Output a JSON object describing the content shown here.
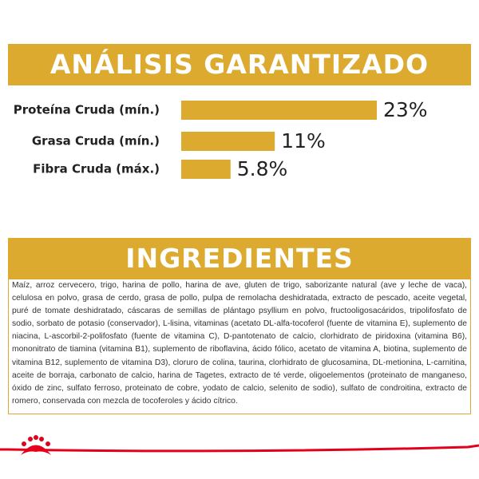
{
  "chart_data": {
    "type": "bar",
    "orientation": "horizontal",
    "title": "ANÁLISIS GARANTIZADO",
    "categories": [
      "Proteína Cruda (mín.)",
      "Grasa Cruda (mín.)",
      "Fibra Cruda (máx.)"
    ],
    "values": [
      23,
      11,
      5.8
    ],
    "value_labels": [
      "23%",
      "11%",
      "5.8%"
    ],
    "color": "#dcaa2e"
  },
  "ingredients": {
    "title": "INGREDIENTES",
    "text": "Maíz, arroz cervecero, trigo, harina de pollo, harina de ave, gluten de trigo, saborizante natural (ave y leche de vaca), celulosa en polvo, grasa de cerdo, grasa de pollo, pulpa de remolacha deshidratada, extracto de pescado, aceite vegetal, puré de tomate deshidratado, cáscaras de semillas de plántago psyllium en polvo, fructooligosacáridos, tripolifosfato de sodio, sorbato de potasio (conservador), L-lisina, vitaminas (acetato DL-alfa-tocoferol (fuente de vitamina E), suplemento de niacina, L-ascorbil-2-polifosfato (fuente de vitamina C), D-pantotenato de calcio, clorhidrato de piridoxina (vitamina B6), mononitrato de tiamina (vitamina B1), suplemento de riboflavina, ácido fólico, acetato de vitamina A, biotina, suplemento de vitamina B12, suplemento de vitamina D3), cloruro de colina, taurina, clorhidrato de glucosamina, DL-metionina, L-carnitina, aceite de borraja, carbonato de calcio, harina de Tagetes, extracto de té verde, oligoelementos (proteinato de manganeso, óxido de zinc, sulfato ferroso, proteinato de cobre, yodato de calcio, selenito de sodio), sulfato de condroitina, extracto de romero, conservada con mezcla de tocoferoles y ácido cítrico."
  }
}
